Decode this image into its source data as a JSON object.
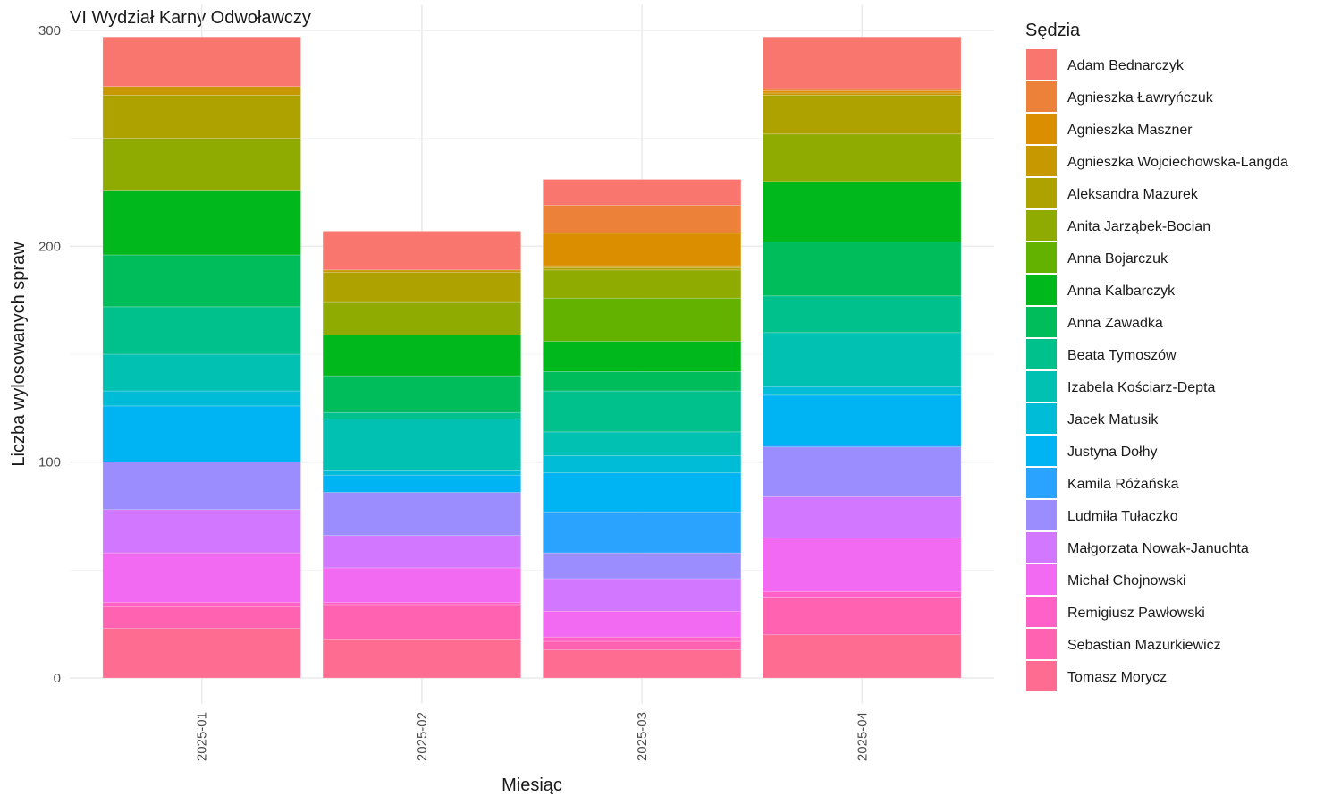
{
  "chart_data": {
    "type": "bar",
    "stacked": true,
    "title": "VI Wydział Karny Odwoławczy",
    "xlabel": "Miesiąc",
    "ylabel": "Liczba wylosowanych spraw",
    "categories": [
      "2025-01",
      "2025-02",
      "2025-03",
      "2025-04"
    ],
    "yticks": [
      "0",
      "100",
      "200",
      "300"
    ],
    "ylim": [
      -12,
      312
    ],
    "grid": true,
    "legend": {
      "title": "Sędzia",
      "position": "right"
    },
    "series": [
      {
        "name": "Adam Bednarczyk",
        "color": "#F8766D",
        "values": [
          23,
          18,
          12,
          24
        ]
      },
      {
        "name": "Agnieszka Ławryńczuk",
        "color": "#EC8239",
        "values": [
          0,
          0,
          13,
          1
        ]
      },
      {
        "name": "Agnieszka Maszner",
        "color": "#DB8E00",
        "values": [
          0,
          0,
          15,
          1
        ]
      },
      {
        "name": "Agnieszka Wojciechowska-Langda",
        "color": "#C79800",
        "values": [
          4,
          1,
          1,
          1
        ]
      },
      {
        "name": "Aleksandra Mazurek",
        "color": "#AEA200",
        "values": [
          20,
          14,
          1,
          18
        ]
      },
      {
        "name": "Anita Jarząbek-Bocian",
        "color": "#8FAA00",
        "values": [
          24,
          15,
          13,
          22
        ]
      },
      {
        "name": "Anna Bojarczuk",
        "color": "#64B200",
        "values": [
          0,
          0,
          20,
          0
        ]
      },
      {
        "name": "Anna Kalbarczyk",
        "color": "#00B81B",
        "values": [
          30,
          19,
          14,
          28
        ]
      },
      {
        "name": "Anna Zawadka",
        "color": "#00BD5C",
        "values": [
          24,
          17,
          9,
          25
        ]
      },
      {
        "name": "Beata Tymoszów",
        "color": "#00C08B",
        "values": [
          22,
          3,
          19,
          17
        ]
      },
      {
        "name": "Izabela Kościarz-Depta",
        "color": "#00C1B2",
        "values": [
          17,
          24,
          11,
          25
        ]
      },
      {
        "name": "Jacek Matusik",
        "color": "#00BCD6",
        "values": [
          7,
          2,
          8,
          4
        ]
      },
      {
        "name": "Justyna Dołhy",
        "color": "#00B3F2",
        "values": [
          26,
          8,
          18,
          23
        ]
      },
      {
        "name": "Kamila Różańska",
        "color": "#29A3FF",
        "values": [
          0,
          0,
          19,
          1
        ]
      },
      {
        "name": "Ludmiła Tułaczko",
        "color": "#9C8DFF",
        "values": [
          22,
          20,
          12,
          23
        ]
      },
      {
        "name": "Małgorzata Nowak-Januchta",
        "color": "#D277FF",
        "values": [
          20,
          15,
          15,
          19
        ]
      },
      {
        "name": "Michał Chojnowski",
        "color": "#F269F2",
        "values": [
          23,
          16,
          12,
          25
        ]
      },
      {
        "name": "Remigiusz Pawłowski",
        "color": "#FF61C7",
        "values": [
          2,
          1,
          2,
          3
        ]
      },
      {
        "name": "Sebastian Mazurkiewicz",
        "color": "#FF62B0",
        "values": [
          10,
          16,
          4,
          17
        ]
      },
      {
        "name": "Tomasz Morycz",
        "color": "#FF6C91",
        "values": [
          23,
          18,
          13,
          20
        ]
      }
    ]
  }
}
